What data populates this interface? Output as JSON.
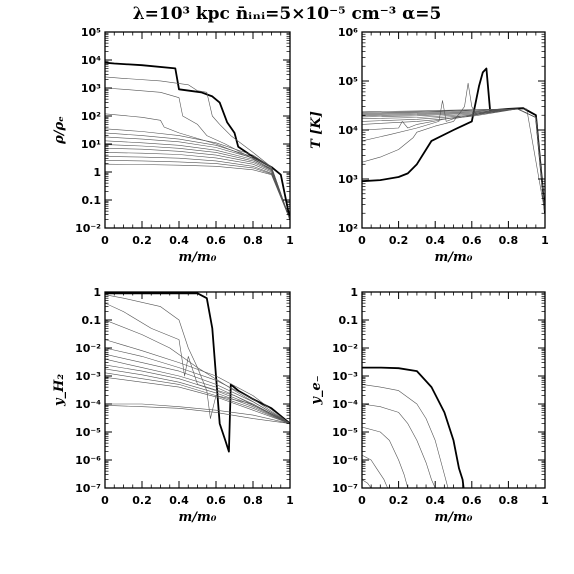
{
  "figure": {
    "title": "λ=10³ kpc  n̄ᵢₙᵢ=5×10⁻⁵ cm⁻³  α=5"
  },
  "chart_data": [
    {
      "type": "line",
      "panel": "top-left",
      "xlabel": "m/m₀",
      "ylabel": "ρ/ρₑ",
      "x_ticks": [
        "0",
        "0.2",
        "0.4",
        "0.6",
        "0.8",
        "1"
      ],
      "y_ticks": [
        "10⁻²",
        "0.1",
        "1",
        "10¹",
        "10²",
        "10³",
        "10⁴",
        "10⁵"
      ],
      "xlim": [
        0,
        1
      ],
      "ylim": [
        0.01,
        100000
      ],
      "yscale": "log",
      "series": [
        {
          "style": "thick",
          "x": [
            0,
            0.05,
            0.2,
            0.38,
            0.4,
            0.52,
            0.58,
            0.62,
            0.66,
            0.7,
            0.72,
            0.8,
            0.9,
            0.95,
            1
          ],
          "y": [
            8000,
            7500,
            6500,
            5000,
            900,
            700,
            500,
            300,
            60,
            25,
            8,
            3.5,
            1.5,
            0.8,
            0.02
          ]
        },
        {
          "style": "thin",
          "x": [
            0,
            0.1,
            0.3,
            0.45,
            0.5,
            0.55,
            0.58,
            0.62,
            0.68,
            0.8,
            0.9,
            1
          ],
          "y": [
            2500,
            2200,
            1800,
            1300,
            800,
            700,
            100,
            50,
            20,
            5,
            1.5,
            0.02
          ]
        },
        {
          "style": "thin",
          "x": [
            0,
            0.1,
            0.3,
            0.4,
            0.42,
            0.5,
            0.55,
            0.65,
            0.8,
            0.9,
            1
          ],
          "y": [
            1000,
            900,
            700,
            450,
            100,
            50,
            20,
            10,
            3,
            1.2,
            0.02
          ]
        },
        {
          "style": "thin",
          "x": [
            0,
            0.2,
            0.3,
            0.32,
            0.4,
            0.6,
            0.8,
            0.9,
            1
          ],
          "y": [
            120,
            90,
            70,
            40,
            25,
            10,
            3,
            1.2,
            0.02
          ]
        },
        {
          "style": "thin",
          "x": [
            0,
            0.2,
            0.4,
            0.6,
            0.8,
            0.9,
            1
          ],
          "y": [
            35,
            28,
            20,
            11,
            4,
            1.5,
            0.02
          ]
        },
        {
          "style": "thin",
          "x": [
            0,
            0.2,
            0.4,
            0.6,
            0.8,
            0.9,
            1
          ],
          "y": [
            25,
            20,
            15,
            9,
            3.5,
            1.5,
            0.02
          ]
        },
        {
          "style": "thin",
          "x": [
            0,
            0.2,
            0.4,
            0.6,
            0.8,
            0.9,
            1
          ],
          "y": [
            18,
            15,
            12,
            7.5,
            3.2,
            1.4,
            0.02
          ]
        },
        {
          "style": "thin",
          "x": [
            0,
            0.2,
            0.4,
            0.6,
            0.8,
            0.9,
            1
          ],
          "y": [
            13,
            11,
            9,
            6,
            2.8,
            1.3,
            0.02
          ]
        },
        {
          "style": "thin",
          "x": [
            0,
            0.2,
            0.4,
            0.6,
            0.8,
            0.9,
            1
          ],
          "y": [
            9.5,
            8.5,
            7,
            5,
            2.5,
            1.2,
            0.02
          ]
        },
        {
          "style": "thin",
          "x": [
            0,
            0.2,
            0.4,
            0.6,
            0.8,
            0.9,
            1
          ],
          "y": [
            7,
            6.5,
            5.5,
            4,
            2.2,
            1.1,
            0.02
          ]
        },
        {
          "style": "thin",
          "x": [
            0,
            0.2,
            0.4,
            0.6,
            0.8,
            0.9,
            1
          ],
          "y": [
            5,
            4.7,
            4.2,
            3.2,
            1.9,
            1.0,
            0.02
          ]
        },
        {
          "style": "thin",
          "x": [
            0,
            0.2,
            0.4,
            0.6,
            0.8,
            0.9,
            1
          ],
          "y": [
            3.6,
            3.4,
            3.1,
            2.5,
            1.6,
            0.9,
            0.02
          ]
        },
        {
          "style": "thin",
          "x": [
            0,
            0.2,
            0.4,
            0.6,
            0.8,
            0.9,
            1
          ],
          "y": [
            2.6,
            2.5,
            2.3,
            2.0,
            1.4,
            0.85,
            0.02
          ]
        },
        {
          "style": "thin",
          "x": [
            0,
            0.2,
            0.4,
            0.6,
            0.8,
            0.9,
            1
          ],
          "y": [
            1.9,
            1.85,
            1.75,
            1.6,
            1.2,
            0.8,
            0.02
          ]
        }
      ]
    },
    {
      "type": "line",
      "panel": "top-right",
      "xlabel": "m/m₀",
      "ylabel": "T [K]",
      "x_ticks": [
        "0",
        "0.2",
        "0.4",
        "0.6",
        "0.8",
        "1"
      ],
      "y_ticks": [
        "10²",
        "10³",
        "10⁴",
        "10⁵",
        "10⁶"
      ],
      "xlim": [
        0,
        1
      ],
      "ylim": [
        100,
        1000000
      ],
      "yscale": "log",
      "series": [
        {
          "style": "thick",
          "x": [
            0,
            0.1,
            0.2,
            0.25,
            0.3,
            0.35,
            0.38,
            0.5,
            0.6,
            0.64,
            0.66,
            0.68,
            0.7,
            0.8,
            0.88,
            0.95,
            1
          ],
          "y": [
            900,
            950,
            1100,
            1300,
            2000,
            4000,
            6000,
            10000,
            15000,
            80000,
            150000,
            180000,
            25000,
            27000,
            28000,
            20000,
            200
          ]
        },
        {
          "style": "thin",
          "x": [
            0,
            0.1,
            0.2,
            0.28,
            0.3,
            0.4,
            0.5,
            0.56,
            0.58,
            0.6,
            0.62,
            0.8,
            0.9,
            1
          ],
          "y": [
            2200,
            2800,
            4000,
            7000,
            9000,
            12000,
            15000,
            30000,
            90000,
            30000,
            22000,
            26000,
            27000,
            200
          ]
        },
        {
          "style": "thin",
          "x": [
            0,
            0.15,
            0.3,
            0.42,
            0.44,
            0.46,
            0.5,
            0.7,
            0.85,
            0.95,
            1
          ],
          "y": [
            6000,
            8000,
            11000,
            15000,
            40000,
            15000,
            17000,
            23000,
            27000,
            18000,
            200
          ]
        },
        {
          "style": "thin",
          "x": [
            0,
            0.2,
            0.22,
            0.25,
            0.3,
            0.5,
            0.7,
            0.85,
            0.95,
            1
          ],
          "y": [
            10000,
            11000,
            15000,
            11000,
            13000,
            18000,
            23000,
            27000,
            18000,
            200
          ]
        },
        {
          "style": "thin",
          "x": [
            0,
            0.3,
            0.6,
            0.85,
            0.95,
            1
          ],
          "y": [
            13000,
            15000,
            19000,
            27000,
            18000,
            200
          ]
        },
        {
          "style": "thin",
          "x": [
            0,
            0.3,
            0.6,
            0.85,
            0.95,
            1
          ],
          "y": [
            15000,
            16500,
            20000,
            27000,
            18000,
            200
          ]
        },
        {
          "style": "thin",
          "x": [
            0,
            0.3,
            0.6,
            0.85,
            0.95,
            1
          ],
          "y": [
            17000,
            18000,
            21000,
            27000,
            18000,
            200
          ]
        },
        {
          "style": "thin",
          "x": [
            0,
            0.3,
            0.6,
            0.85,
            0.95,
            1
          ],
          "y": [
            18500,
            19500,
            22000,
            27000,
            18000,
            200
          ]
        },
        {
          "style": "thin",
          "x": [
            0,
            0.3,
            0.6,
            0.85,
            0.95,
            1
          ],
          "y": [
            19500,
            20500,
            23000,
            27000,
            18000,
            200
          ]
        },
        {
          "style": "thin",
          "x": [
            0,
            0.3,
            0.6,
            0.85,
            0.95,
            1
          ],
          "y": [
            20500,
            21500,
            24000,
            27000,
            18000,
            200
          ]
        },
        {
          "style": "thin",
          "x": [
            0,
            0.3,
            0.6,
            0.85,
            0.95,
            1
          ],
          "y": [
            21500,
            22500,
            25000,
            27000,
            18000,
            200
          ]
        },
        {
          "style": "thin",
          "x": [
            0,
            0.3,
            0.6,
            0.85,
            0.95,
            1
          ],
          "y": [
            22500,
            23500,
            25500,
            27000,
            18000,
            200
          ]
        },
        {
          "style": "thin",
          "x": [
            0,
            0.3,
            0.6,
            0.85,
            0.95,
            1
          ],
          "y": [
            23500,
            24500,
            26000,
            27000,
            18000,
            200
          ]
        }
      ]
    },
    {
      "type": "line",
      "panel": "bottom-left",
      "xlabel": "m/m₀",
      "ylabel": "y_H₂",
      "x_ticks": [
        "0",
        "0.2",
        "0.4",
        "0.6",
        "0.8",
        "1"
      ],
      "y_ticks": [
        "10⁻⁷",
        "10⁻⁶",
        "10⁻⁵",
        "10⁻⁴",
        "10⁻³",
        "10⁻²",
        "0.1",
        "1"
      ],
      "xlim": [
        0,
        1
      ],
      "ylim": [
        1e-07,
        1
      ],
      "yscale": "log",
      "series": [
        {
          "style": "thick",
          "x": [
            0,
            0.1,
            0.3,
            0.5,
            0.55,
            0.58,
            0.62,
            0.65,
            0.67,
            0.68,
            0.72,
            0.8,
            0.9,
            1
          ],
          "y": [
            0.9,
            0.9,
            0.9,
            0.9,
            0.6,
            0.05,
            2e-05,
            5e-06,
            2e-06,
            0.0005,
            0.0003,
            0.00015,
            7e-05,
            2e-05
          ]
        },
        {
          "style": "thin",
          "x": [
            0,
            0.1,
            0.3,
            0.4,
            0.45,
            0.5,
            0.55,
            0.57,
            0.6,
            0.8,
            1
          ],
          "y": [
            0.8,
            0.6,
            0.3,
            0.1,
            0.01,
            0.002,
            0.0003,
            3e-05,
            0.0002,
            0.0001,
            2e-05
          ]
        },
        {
          "style": "thin",
          "x": [
            0,
            0.1,
            0.25,
            0.4,
            0.43,
            0.45,
            0.5,
            0.7,
            1
          ],
          "y": [
            0.4,
            0.2,
            0.05,
            0.02,
            0.001,
            0.005,
            0.0005,
            0.0002,
            2e-05
          ]
        },
        {
          "style": "thin",
          "x": [
            0,
            0.2,
            0.35,
            0.5,
            0.7,
            1
          ],
          "y": [
            0.1,
            0.03,
            0.01,
            0.002,
            0.0003,
            2e-05
          ]
        },
        {
          "style": "thin",
          "x": [
            0,
            0.2,
            0.4,
            0.6,
            0.8,
            1
          ],
          "y": [
            0.02,
            0.008,
            0.003,
            0.001,
            0.0002,
            2e-05
          ]
        },
        {
          "style": "thin",
          "x": [
            0,
            0.2,
            0.4,
            0.6,
            0.8,
            1
          ],
          "y": [
            0.01,
            0.005,
            0.002,
            0.0007,
            0.00015,
            2e-05
          ]
        },
        {
          "style": "thin",
          "x": [
            0,
            0.2,
            0.4,
            0.6,
            0.8,
            1
          ],
          "y": [
            0.006,
            0.003,
            0.0015,
            0.0005,
            0.00012,
            2e-05
          ]
        },
        {
          "style": "thin",
          "x": [
            0,
            0.2,
            0.4,
            0.6,
            0.8,
            1
          ],
          "y": [
            0.004,
            0.002,
            0.001,
            0.0004,
            0.0001,
            2e-05
          ]
        },
        {
          "style": "thin",
          "x": [
            0,
            0.2,
            0.4,
            0.6,
            0.8,
            1
          ],
          "y": [
            0.0025,
            0.0015,
            0.0008,
            0.0003,
            9e-05,
            2e-05
          ]
        },
        {
          "style": "thin",
          "x": [
            0,
            0.2,
            0.4,
            0.6,
            0.8,
            1
          ],
          "y": [
            0.0018,
            0.0011,
            0.0006,
            0.00025,
            8e-05,
            2e-05
          ]
        },
        {
          "style": "thin",
          "x": [
            0,
            0.2,
            0.4,
            0.6,
            0.8,
            1
          ],
          "y": [
            0.0013,
            0.0008,
            0.0005,
            0.0002,
            7e-05,
            2e-05
          ]
        },
        {
          "style": "thin",
          "x": [
            0,
            0.2,
            0.4,
            0.6,
            0.8,
            1
          ],
          "y": [
            0.0009,
            0.0006,
            0.0004,
            0.00018,
            6e-05,
            2e-05
          ]
        },
        {
          "style": "thin",
          "x": [
            0,
            0.2,
            0.4,
            0.6,
            0.8,
            1
          ],
          "y": [
            0.0001,
            0.0001,
            8e-05,
            6e-05,
            4e-05,
            2e-05
          ]
        },
        {
          "style": "thin",
          "x": [
            0,
            0.2,
            0.4,
            0.6,
            0.8,
            1
          ],
          "y": [
            9e-05,
            8e-05,
            7e-05,
            5e-05,
            3e-05,
            2e-05
          ]
        }
      ]
    },
    {
      "type": "line",
      "panel": "bottom-right",
      "xlabel": "m/m₀",
      "ylabel": "y_e₋",
      "x_ticks": [
        "0",
        "0.2",
        "0.4",
        "0.6",
        "0.8",
        "1"
      ],
      "y_ticks": [
        "10⁻⁷",
        "10⁻⁶",
        "10⁻⁵",
        "10⁻⁴",
        "10⁻³",
        "10⁻²",
        "0.1",
        "1"
      ],
      "xlim": [
        0,
        1
      ],
      "ylim": [
        1e-07,
        1
      ],
      "yscale": "log",
      "series": [
        {
          "style": "thick",
          "x": [
            0,
            0.1,
            0.2,
            0.3,
            0.38,
            0.45,
            0.5,
            0.53,
            0.55,
            0.555
          ],
          "y": [
            0.002,
            0.002,
            0.0019,
            0.0015,
            0.0004,
            5e-05,
            5e-06,
            5e-07,
            2e-07,
            1e-07
          ]
        },
        {
          "style": "thin",
          "x": [
            0,
            0.1,
            0.2,
            0.3,
            0.35,
            0.4,
            0.45,
            0.47
          ],
          "y": [
            0.0005,
            0.0004,
            0.0003,
            0.0001,
            3e-05,
            5e-06,
            3e-07,
            1e-07
          ]
        },
        {
          "style": "thin",
          "x": [
            0,
            0.1,
            0.2,
            0.25,
            0.3,
            0.35,
            0.38,
            0.4
          ],
          "y": [
            0.0001,
            8e-05,
            5e-05,
            2e-05,
            5e-06,
            8e-07,
            2e-07,
            1e-07
          ]
        },
        {
          "style": "thin",
          "x": [
            0,
            0.1,
            0.15,
            0.2,
            0.23,
            0.25
          ],
          "y": [
            1.5e-05,
            1e-05,
            5e-06,
            1e-06,
            3e-07,
            1e-07
          ]
        },
        {
          "style": "thin",
          "x": [
            0,
            0.05,
            0.08,
            0.12,
            0.14
          ],
          "y": [
            1.5e-06,
            1e-06,
            5e-07,
            2e-07,
            1e-07
          ]
        },
        {
          "style": "thin",
          "x": [
            0,
            0.03,
            0.05
          ],
          "y": [
            2e-07,
            1.5e-07,
            1e-07
          ]
        }
      ]
    }
  ]
}
